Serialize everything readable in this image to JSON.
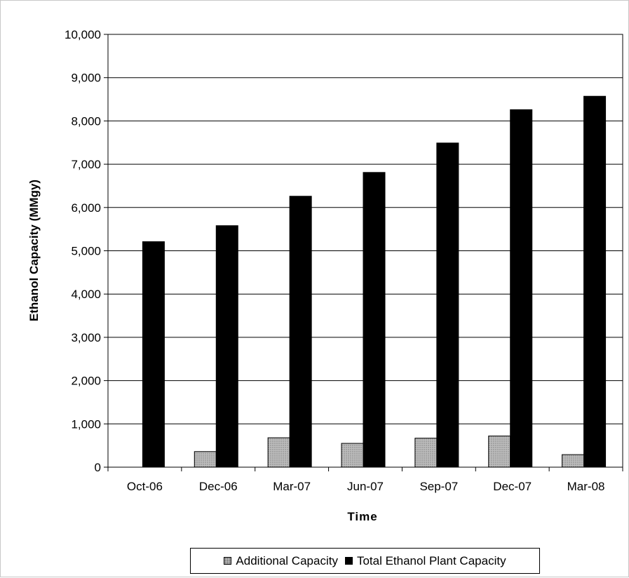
{
  "chart_data": {
    "type": "bar",
    "title": "",
    "xlabel": "Time",
    "ylabel": "Ethanol Capacity (MMgy)",
    "categories": [
      "Oct-06",
      "Dec-06",
      "Mar-07",
      "Jun-07",
      "Sep-07",
      "Dec-07",
      "Mar-08"
    ],
    "series": [
      {
        "name": "Additional Capacity",
        "values": [
          0,
          360,
          680,
          550,
          670,
          720,
          290
        ],
        "color": "#b4b4b4"
      },
      {
        "name": "Total Ethanol Plant Capacity",
        "values": [
          5210,
          5580,
          6260,
          6810,
          7490,
          8260,
          8570
        ],
        "color": "#000000"
      }
    ],
    "ylim": [
      0,
      10000
    ],
    "yticks": [
      0,
      1000,
      2000,
      3000,
      4000,
      5000,
      6000,
      7000,
      8000,
      9000,
      10000
    ],
    "ytick_labels": [
      "0",
      "1,000",
      "2,000",
      "3,000",
      "4,000",
      "5,000",
      "6,000",
      "7,000",
      "8,000",
      "9,000",
      "10,000"
    ],
    "grid": true,
    "legend_position": "bottom"
  }
}
